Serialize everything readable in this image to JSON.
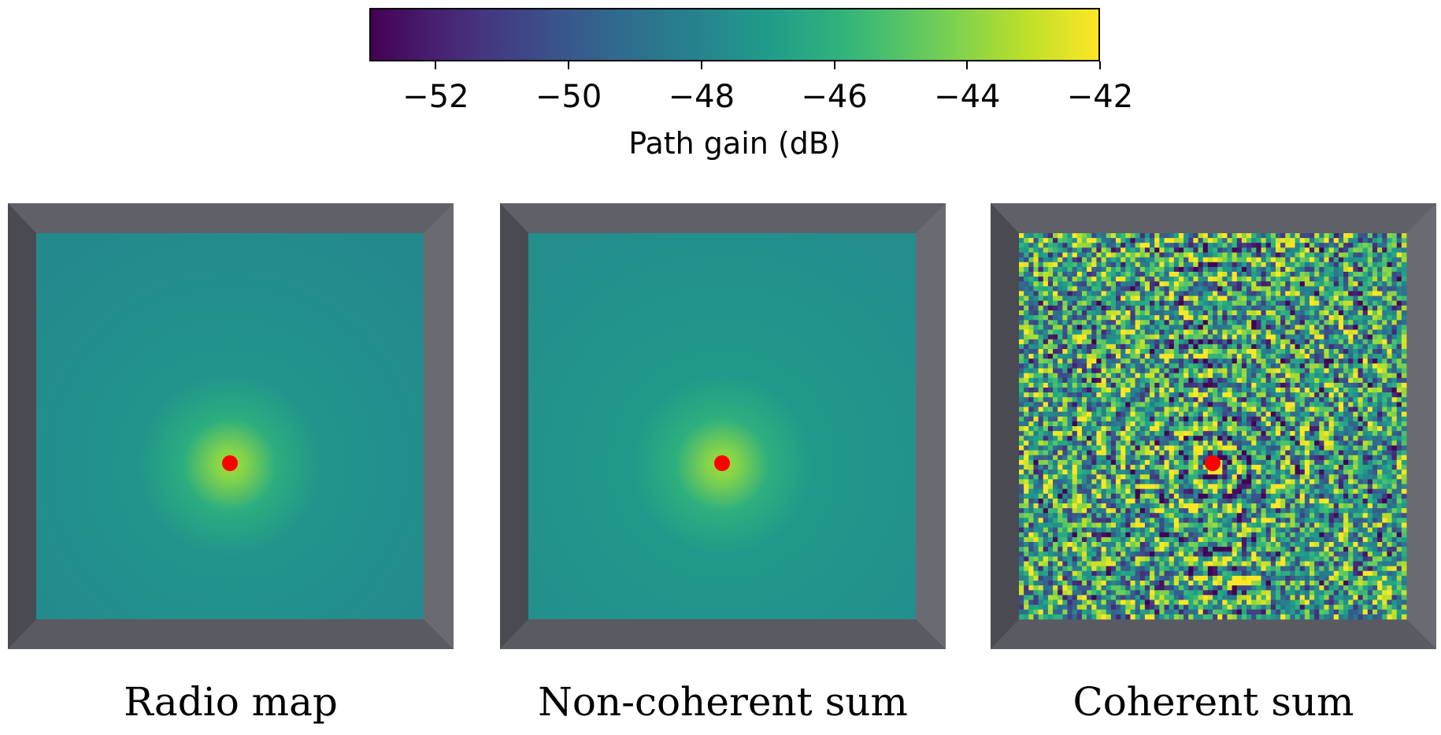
{
  "chart_data": {
    "type": "heatmap",
    "colormap": "viridis",
    "colorbar": {
      "label": "Path gain (dB)",
      "range": [
        -53,
        -42
      ],
      "ticks": [
        "−52",
        "−50",
        "−48",
        "−46",
        "−44",
        "−42"
      ],
      "tick_values": [
        -52,
        -50,
        -48,
        -46,
        -44,
        -42
      ],
      "orientation": "horizontal",
      "placement": "top"
    },
    "panels": [
      {
        "title": "Radio map",
        "pattern": "smooth",
        "background_db": -47.8,
        "peak_db": -43.5,
        "transmitter_marker": {
          "color": "#ff0000",
          "position": "center"
        }
      },
      {
        "title": "Non-coherent sum",
        "pattern": "smooth",
        "background_db": -47.6,
        "peak_db": -43.5,
        "transmitter_marker": {
          "color": "#ff0000",
          "position": "center"
        }
      },
      {
        "title": "Coherent sum",
        "pattern": "interference",
        "background_db": -47.0,
        "peak_db": -42.0,
        "transmitter_marker": {
          "color": "#ff0000",
          "position": "center"
        }
      }
    ]
  }
}
